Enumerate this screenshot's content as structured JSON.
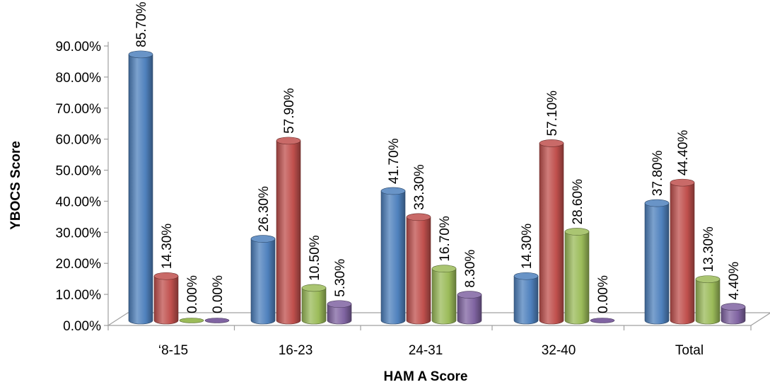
{
  "chart_data": {
    "type": "bar",
    "title": "",
    "xlabel": "HAM A Score",
    "ylabel": "YBOCS Score",
    "ylim": [
      0,
      90
    ],
    "yticks": [
      0,
      10,
      20,
      30,
      40,
      50,
      60,
      70,
      80,
      90
    ],
    "ytick_labels": [
      "0.00%",
      "10.00%",
      "20.00%",
      "30.00%",
      "40.00%",
      "50.00%",
      "60.00%",
      "70.00%",
      "80.00%",
      "90.00%"
    ],
    "categories": [
      "‘8-15",
      "16-23",
      "24-31",
      "32-40",
      "Total"
    ],
    "grid": false,
    "legend": "none",
    "series": [
      {
        "color": "#4f81bd",
        "values": [
          85.7,
          26.3,
          41.7,
          14.3,
          37.8
        ],
        "labels": [
          "85.70%",
          "26.30%",
          "41.70%",
          "14.30%",
          "37.80%"
        ]
      },
      {
        "color": "#c0504d",
        "values": [
          14.3,
          57.9,
          33.3,
          57.1,
          44.4
        ],
        "labels": [
          "14.30%",
          "57.90%",
          "33.30%",
          "57.10%",
          "44.40%"
        ]
      },
      {
        "color": "#9bbb59",
        "values": [
          0,
          10.5,
          16.7,
          28.6,
          13.3
        ],
        "labels": [
          "0.00%",
          "10.50%",
          "16.70%",
          "28.60%",
          "13.30%"
        ]
      },
      {
        "color": "#8064a2",
        "values": [
          0,
          5.3,
          8.3,
          0,
          4.4
        ],
        "labels": [
          "0.00%",
          "5.30%",
          "8.30%",
          "0.00%",
          "4.40%"
        ]
      }
    ]
  }
}
